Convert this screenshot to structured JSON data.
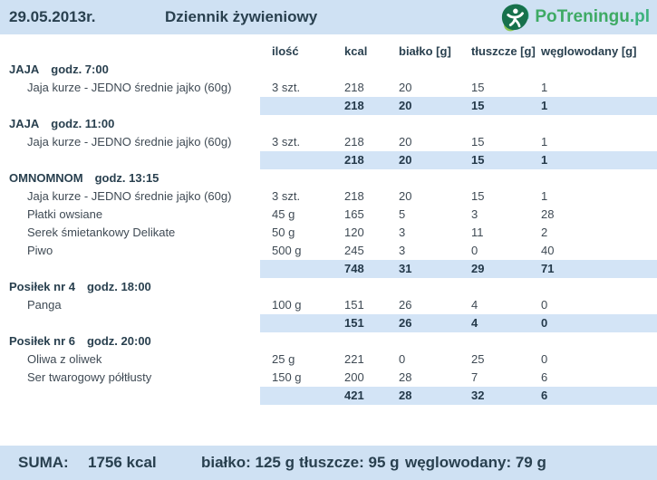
{
  "header": {
    "date": "29.05.2013r.",
    "title": "Dziennik żywieniowy",
    "logo": {
      "brand": "PoTreningu",
      "tld": ".pl"
    }
  },
  "columns": [
    "ilość",
    "kcal",
    "białko [g]",
    "tłuszcze [g]",
    "węglowodany [g]"
  ],
  "meals": [
    {
      "name": "JAJA",
      "time": "godz. 7:00",
      "items": [
        {
          "name": "Jaja kurze - JEDNO średnie jajko (60g)",
          "qty": "3 szt.",
          "kcal": "218",
          "protein": "20",
          "fat": "15",
          "carbs": "1"
        }
      ],
      "total": {
        "kcal": "218",
        "protein": "20",
        "fat": "15",
        "carbs": "1"
      }
    },
    {
      "name": "JAJA",
      "time": "godz. 11:00",
      "items": [
        {
          "name": "Jaja kurze - JEDNO średnie jajko (60g)",
          "qty": "3 szt.",
          "kcal": "218",
          "protein": "20",
          "fat": "15",
          "carbs": "1"
        }
      ],
      "total": {
        "kcal": "218",
        "protein": "20",
        "fat": "15",
        "carbs": "1"
      }
    },
    {
      "name": "OMNOMNOM",
      "time": "godz. 13:15",
      "items": [
        {
          "name": "Jaja kurze - JEDNO średnie jajko (60g)",
          "qty": "3 szt.",
          "kcal": "218",
          "protein": "20",
          "fat": "15",
          "carbs": "1"
        },
        {
          "name": "Płatki owsiane",
          "qty": "45 g",
          "kcal": "165",
          "protein": "5",
          "fat": "3",
          "carbs": "28"
        },
        {
          "name": "Serek śmietankowy Delikate",
          "qty": "50 g",
          "kcal": "120",
          "protein": "3",
          "fat": "11",
          "carbs": "2"
        },
        {
          "name": "Piwo",
          "qty": "500 g",
          "kcal": "245",
          "protein": "3",
          "fat": "0",
          "carbs": "40"
        }
      ],
      "total": {
        "kcal": "748",
        "protein": "31",
        "fat": "29",
        "carbs": "71"
      }
    },
    {
      "name": "Posiłek nr 4",
      "time": "godz. 18:00",
      "items": [
        {
          "name": "Panga",
          "qty": "100 g",
          "kcal": "151",
          "protein": "26",
          "fat": "4",
          "carbs": "0"
        }
      ],
      "total": {
        "kcal": "151",
        "protein": "26",
        "fat": "4",
        "carbs": "0"
      }
    },
    {
      "name": "Posiłek nr 6",
      "time": "godz. 20:00",
      "items": [
        {
          "name": "Oliwa z oliwek",
          "qty": "25 g",
          "kcal": "221",
          "protein": "0",
          "fat": "25",
          "carbs": "0"
        },
        {
          "name": "Ser twarogowy półtłusty",
          "qty": "150 g",
          "kcal": "200",
          "protein": "28",
          "fat": "7",
          "carbs": "6"
        }
      ],
      "total": {
        "kcal": "421",
        "protein": "28",
        "fat": "32",
        "carbs": "6"
      }
    }
  ],
  "summary": {
    "label": "SUMA:",
    "kcal": "1756 kcal",
    "protein": "białko: 125 g",
    "fat": "tłuszcze: 95 g",
    "carbs": "węglowodany: 79 g"
  },
  "colors": {
    "bar_blue": "#cfe1f3",
    "row_highlight_blue": "#d3e4f6",
    "text_dark_navy": "#29404f",
    "brand_green": "#3eaa64",
    "logo_icon_green": "#17714c"
  }
}
